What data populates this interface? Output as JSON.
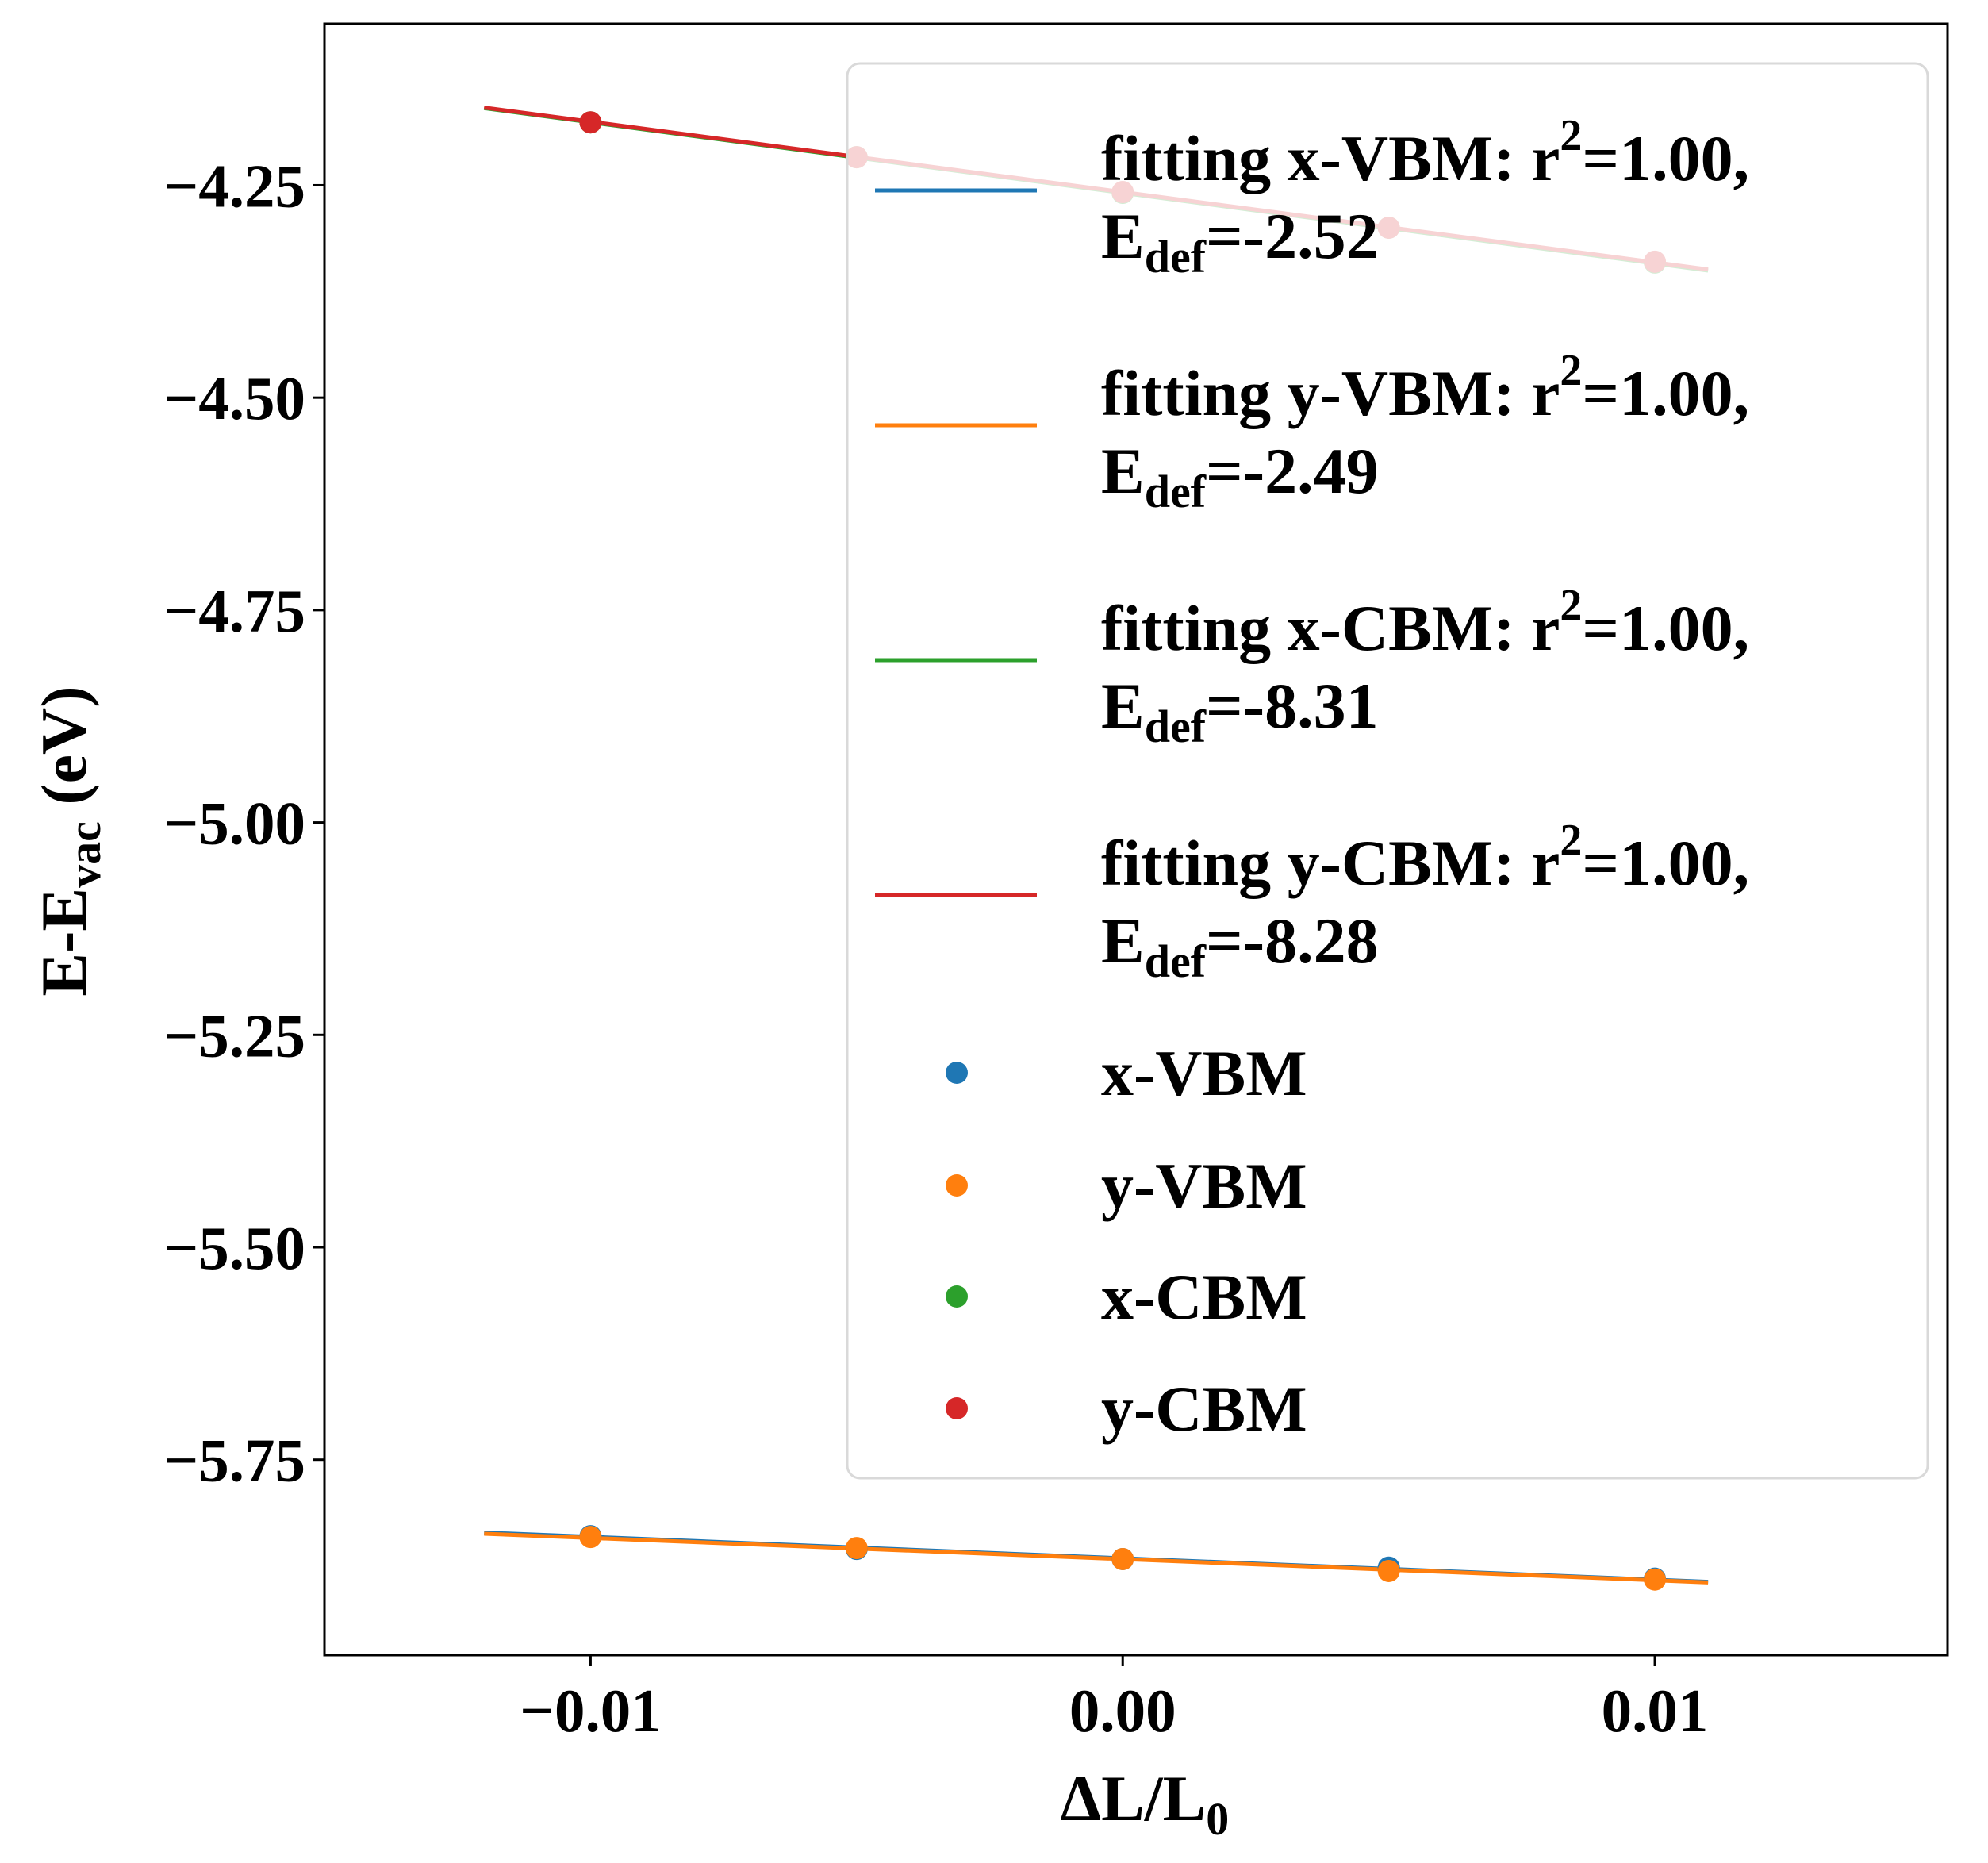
{
  "chart_data": {
    "type": "scatter",
    "xlabel": {
      "main": "ΔL/L",
      "sub": "0"
    },
    "ylabel": {
      "main": "E-E",
      "sub": "vac",
      "tail": " (eV)"
    },
    "xlim": [
      -0.015,
      0.0155
    ],
    "ylim": [
      -5.98,
      -4.06
    ],
    "xticks": [
      -0.01,
      0.0,
      0.01
    ],
    "xtick_labels": [
      "−0.01",
      "0.00",
      "0.01"
    ],
    "yticks": [
      -4.25,
      -4.5,
      -4.75,
      -5.0,
      -5.25,
      -5.5,
      -5.75
    ],
    "ytick_labels": [
      "−4.25",
      "−4.50",
      "−4.75",
      "−5.00",
      "−5.25",
      "−5.50",
      "−5.75"
    ],
    "grid": false,
    "legend_position": "top-right",
    "x": [
      -0.01,
      -0.005,
      0.0,
      0.005,
      0.01
    ],
    "fit_x_range": [
      -0.012,
      0.011
    ],
    "series": [
      {
        "name": "x-VBM",
        "color": "#1f77b4",
        "values": [
          -5.84,
          -5.855,
          -5.867,
          -5.877,
          -5.89
        ],
        "fit": {
          "slope": -2.52,
          "intercept": -5.866,
          "label": "fitting x-VBM: r",
          "sup": "2",
          "label_tail": "=1.00,",
          "edef_main": "E",
          "edef_sub": "def",
          "edef_value": "=-2.52"
        }
      },
      {
        "name": "y-VBM",
        "color": "#ff7f0e",
        "values": [
          -5.841,
          -5.854,
          -5.867,
          -5.881,
          -5.891
        ],
        "fit": {
          "slope": -2.49,
          "intercept": -5.867,
          "label": "fitting y-VBM: r",
          "sup": "2",
          "label_tail": "=1.00,",
          "edef_main": "E",
          "edef_sub": "def",
          "edef_value": "=-2.49"
        }
      },
      {
        "name": "x-CBM",
        "color": "#2ca02c",
        "values": [
          -4.176,
          -4.217,
          -4.259,
          -4.3,
          -4.341
        ],
        "fit": {
          "slope": -8.31,
          "intercept": -4.259,
          "label": "fitting x-CBM: r",
          "sup": "2",
          "label_tail": "=1.00,",
          "edef_main": "E",
          "edef_sub": "def",
          "edef_value": "=-8.31"
        }
      },
      {
        "name": "y-CBM",
        "color": "#d62728",
        "values": [
          -4.176,
          -4.217,
          -4.258,
          -4.3,
          -4.34
        ],
        "fit": {
          "slope": -8.28,
          "intercept": -4.258,
          "label": "fitting y-CBM: r",
          "sup": "2",
          "label_tail": "=1.00,",
          "edef_main": "E",
          "edef_sub": "def",
          "edef_value": "=-8.28"
        }
      }
    ]
  }
}
